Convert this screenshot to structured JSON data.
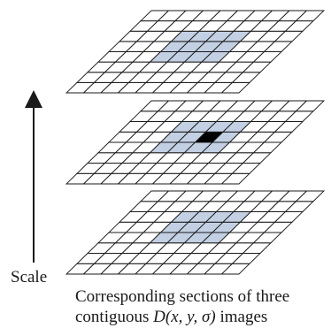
{
  "axis": {
    "label": "Scale"
  },
  "caption": {
    "line1": "Corresponding sections of three",
    "line2_prefix": "contiguous ",
    "line2_expr": "D(x, y, σ)",
    "line2_suffix": " images"
  },
  "grid": {
    "rows": 8,
    "cols": 10
  },
  "colors": {
    "highlight": "#c3d0e4",
    "center": "#000000",
    "line": "#1a1a1a",
    "background": "#ffffff"
  },
  "layers": [
    {
      "name": "top",
      "highlight_rows": [
        3,
        6
      ],
      "highlight_cols": [
        3,
        7
      ],
      "center_cell": null
    },
    {
      "name": "middle",
      "highlight_rows": [
        3,
        6
      ],
      "highlight_cols": [
        3,
        7
      ],
      "center_cell": [
        4,
        5
      ]
    },
    {
      "name": "bottom",
      "highlight_rows": [
        3,
        6
      ],
      "highlight_cols": [
        3,
        7
      ],
      "center_cell": null
    }
  ]
}
